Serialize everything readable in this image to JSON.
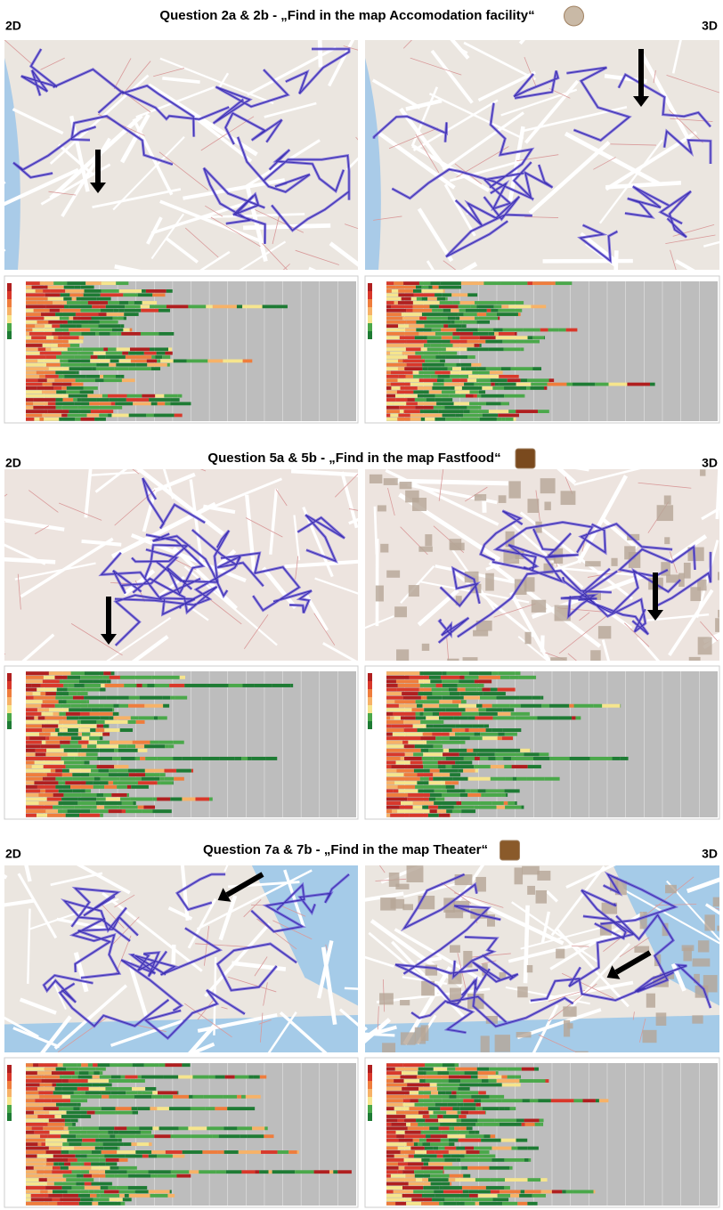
{
  "sections": [
    {
      "title": "Question 2a & 2b - „Find in the map Accomodation facility“",
      "left_label": "2D",
      "right_label": "3D"
    },
    {
      "title": "Question 5a & 5b - „Find in the map Fastfood“",
      "left_label": "2D",
      "right_label": "3D"
    },
    {
      "title": "Question 7a & 7b - „Find in the map Theater“",
      "left_label": "2D",
      "right_label": "3D"
    }
  ]
}
